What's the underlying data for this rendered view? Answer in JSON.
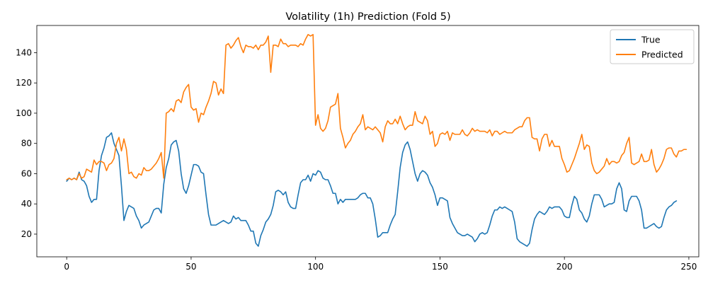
{
  "chart_data": {
    "type": "line",
    "title": "Volatility (1h) Prediction (Fold 5)",
    "xlabel": "",
    "ylabel": "",
    "xlim": [
      -12,
      254
    ],
    "ylim": [
      5,
      158
    ],
    "xticks": [
      0,
      50,
      100,
      150,
      200,
      250
    ],
    "yticks": [
      20,
      40,
      60,
      80,
      100,
      120,
      140
    ],
    "grid": false,
    "legend": "top-right",
    "series": [
      {
        "name": "True",
        "color": "#1f77b4",
        "values": [
          55,
          57,
          56,
          57,
          56,
          61,
          56,
          55,
          52,
          45,
          41,
          43,
          43,
          62,
          72,
          77,
          84,
          85,
          87,
          80,
          76,
          72,
          52,
          29,
          35,
          39,
          38,
          37,
          32,
          29,
          24,
          26,
          27,
          28,
          32,
          36,
          37,
          37,
          34,
          53,
          64,
          70,
          79,
          81,
          82,
          75,
          60,
          50,
          47,
          52,
          59,
          66,
          66,
          65,
          61,
          60,
          46,
          33,
          26,
          26,
          26,
          27,
          28,
          29,
          28,
          27,
          28,
          32,
          30,
          31,
          29,
          29,
          29,
          26,
          22,
          22,
          14,
          12,
          19,
          23,
          28,
          30,
          33,
          39,
          48,
          49,
          48,
          46,
          48,
          41,
          38,
          37,
          37,
          46,
          54,
          56,
          56,
          59,
          55,
          60,
          59,
          62,
          61,
          57,
          56,
          56,
          52,
          47,
          47,
          40,
          43,
          41,
          43,
          43,
          43,
          43,
          43,
          44,
          46,
          47,
          47,
          44,
          44,
          40,
          30,
          18,
          19,
          21,
          21,
          21,
          26,
          30,
          33,
          48,
          64,
          74,
          79,
          81,
          76,
          68,
          60,
          55,
          60,
          62,
          61,
          59,
          54,
          51,
          46,
          39,
          44,
          44,
          43,
          42,
          31,
          27,
          24,
          21,
          20,
          19,
          19,
          20,
          19,
          18,
          15,
          17,
          20,
          21,
          20,
          21,
          26,
          32,
          36,
          36,
          38,
          37,
          38,
          37,
          36,
          35,
          28,
          17,
          15,
          14,
          13,
          12,
          14,
          23,
          30,
          33,
          35,
          34,
          33,
          35,
          38,
          37,
          38,
          38,
          38,
          36,
          32,
          31,
          31,
          39,
          45,
          43,
          36,
          34,
          30,
          28,
          32,
          40,
          46,
          46,
          46,
          43,
          38,
          39,
          40,
          40,
          41,
          50,
          54,
          50,
          36,
          35,
          42,
          45,
          45,
          45,
          42,
          36,
          24,
          24,
          25,
          26,
          27,
          25,
          24,
          25,
          31,
          36,
          38,
          39,
          41,
          42
        ]
      },
      {
        "name": "Predicted",
        "color": "#ff7f0e",
        "values": [
          56,
          57,
          56,
          57,
          56,
          60,
          57,
          58,
          63,
          62,
          61,
          69,
          66,
          68,
          68,
          67,
          62,
          66,
          67,
          70,
          80,
          84,
          75,
          83,
          76,
          60,
          61,
          58,
          57,
          60,
          59,
          64,
          62,
          62,
          63,
          65,
          67,
          70,
          74,
          57,
          100,
          101,
          103,
          101,
          108,
          109,
          107,
          114,
          117,
          119,
          104,
          102,
          103,
          94,
          100,
          99,
          104,
          108,
          113,
          121,
          120,
          112,
          116,
          113,
          145,
          146,
          143,
          145,
          148,
          150,
          144,
          140,
          145,
          144,
          144,
          143,
          145,
          142,
          145,
          145,
          147,
          151,
          127,
          145,
          145,
          144,
          149,
          146,
          146,
          144,
          145,
          145,
          145,
          144,
          146,
          145,
          149,
          152,
          151,
          152,
          92,
          99,
          90,
          88,
          90,
          95,
          104,
          105,
          106,
          113,
          90,
          84,
          77,
          80,
          82,
          86,
          88,
          91,
          93,
          99,
          89,
          91,
          90,
          89,
          91,
          89,
          87,
          81,
          91,
          95,
          93,
          93,
          96,
          93,
          98,
          93,
          89,
          91,
          92,
          92,
          101,
          95,
          94,
          93,
          98,
          95,
          86,
          88,
          78,
          80,
          86,
          87,
          86,
          88,
          82,
          87,
          86,
          86,
          86,
          89,
          86,
          85,
          87,
          90,
          88,
          89,
          88,
          88,
          88,
          87,
          89,
          85,
          88,
          88,
          86,
          87,
          88,
          87,
          87,
          87,
          89,
          90,
          91,
          91,
          95,
          97,
          97,
          84,
          83,
          83,
          75,
          83,
          86,
          86,
          78,
          82,
          78,
          78,
          78,
          70,
          66,
          61,
          62,
          66,
          70,
          75,
          80,
          86,
          76,
          79,
          78,
          67,
          62,
          60,
          61,
          63,
          65,
          70,
          66,
          68,
          68,
          67,
          68,
          72,
          74,
          80,
          84,
          67,
          66,
          67,
          68,
          73,
          68,
          68,
          69,
          76,
          66,
          61,
          63,
          66,
          70,
          76,
          77,
          77,
          73,
          71,
          75,
          75,
          76,
          76
        ]
      }
    ]
  }
}
